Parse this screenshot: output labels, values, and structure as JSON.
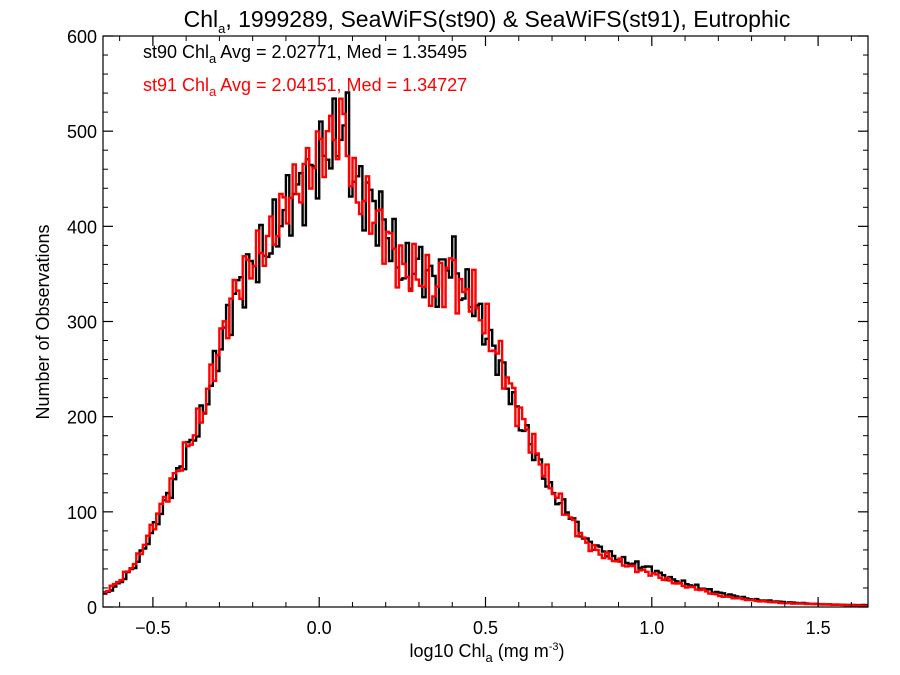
{
  "chart_data": {
    "type": "line",
    "title": "Chla, 1999289, SeaWiFS(st90) & SeaWiFS(st91), Eutrophic",
    "title_parts": {
      "main": "Chl",
      "sub": "a",
      "rest": ", 1999289, SeaWiFS(st90) & SeaWiFS(st91), Eutrophic"
    },
    "xlabel": "log10 Chla (mg m-3)",
    "xlabel_parts": {
      "pre": "log10 Chl",
      "sub": "a",
      "mid": " (mg m",
      "sup": "-3",
      "post": ")"
    },
    "ylabel": "Number of Observations",
    "xlim": [
      -0.65,
      1.65
    ],
    "ylim": [
      0,
      600
    ],
    "x_ticks": [
      -0.5,
      0.0,
      0.5,
      1.0,
      1.5
    ],
    "x_tick_labels": [
      "−0.5",
      "0.0",
      "0.5",
      "1.0",
      "1.5"
    ],
    "y_ticks": [
      0,
      100,
      200,
      300,
      400,
      500,
      600
    ],
    "y_tick_labels": [
      "0",
      "100",
      "200",
      "300",
      "400",
      "500",
      "600"
    ],
    "legend_placement": "top-left",
    "series": [
      {
        "name": "st90",
        "color": "#000000",
        "stats": {
          "prefix": "st90 Chl",
          "sub": "a",
          "text": " Avg = 2.02771, Med = 1.35495"
        },
        "x": [
          -0.65,
          -0.6,
          -0.55,
          -0.5,
          -0.45,
          -0.4,
          -0.35,
          -0.3,
          -0.25,
          -0.2,
          -0.15,
          -0.1,
          -0.05,
          0.0,
          0.05,
          0.08,
          0.1,
          0.15,
          0.2,
          0.25,
          0.3,
          0.35,
          0.4,
          0.43,
          0.45,
          0.5,
          0.55,
          0.6,
          0.65,
          0.7,
          0.75,
          0.8,
          0.85,
          0.9,
          0.95,
          1.0,
          1.05,
          1.1,
          1.15,
          1.2,
          1.3,
          1.4,
          1.5,
          1.6,
          1.65
        ],
        "y": [
          12,
          25,
          45,
          80,
          120,
          160,
          200,
          270,
          330,
          360,
          380,
          420,
          440,
          470,
          490,
          515,
          450,
          430,
          400,
          350,
          360,
          340,
          370,
          330,
          330,
          290,
          250,
          200,
          160,
          120,
          100,
          70,
          60,
          50,
          45,
          40,
          30,
          25,
          20,
          15,
          8,
          5,
          3,
          2,
          2
        ]
      },
      {
        "name": "st91",
        "color": "#ff0000",
        "stats": {
          "prefix": "st91 Chl",
          "sub": "a",
          "text": " Avg = 2.04151, Med = 1.34727"
        },
        "x": [
          -0.65,
          -0.6,
          -0.55,
          -0.5,
          -0.45,
          -0.4,
          -0.35,
          -0.3,
          -0.25,
          -0.2,
          -0.15,
          -0.1,
          -0.05,
          0.0,
          0.05,
          0.08,
          0.1,
          0.15,
          0.2,
          0.25,
          0.3,
          0.35,
          0.4,
          0.43,
          0.45,
          0.5,
          0.55,
          0.6,
          0.65,
          0.7,
          0.75,
          0.8,
          0.85,
          0.9,
          0.95,
          1.0,
          1.05,
          1.1,
          1.15,
          1.2,
          1.3,
          1.4,
          1.5,
          1.6,
          1.65
        ],
        "y": [
          14,
          28,
          48,
          85,
          125,
          165,
          205,
          275,
          335,
          365,
          385,
          425,
          450,
          480,
          500,
          510,
          440,
          420,
          390,
          355,
          350,
          330,
          360,
          320,
          340,
          295,
          255,
          205,
          165,
          125,
          95,
          68,
          55,
          48,
          40,
          35,
          28,
          22,
          18,
          12,
          7,
          4,
          3,
          2,
          1
        ]
      }
    ]
  }
}
